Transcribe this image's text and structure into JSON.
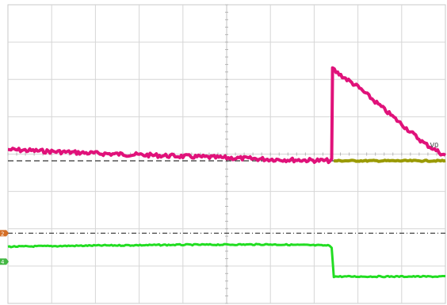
{
  "chart_data": {
    "type": "line",
    "title": "",
    "xlabel": "",
    "ylabel": "",
    "grid": true,
    "grid_divisions": {
      "x": 10,
      "y": 8
    },
    "xlim": [
      0,
      10
    ],
    "ylim": [
      0,
      8
    ],
    "series": [
      {
        "color": "#e0127a",
        "x": [
          0,
          1,
          2,
          3,
          4,
          5,
          6,
          7.4,
          7.42,
          7.5,
          8,
          8.5,
          9,
          9.5,
          10
        ],
        "values": [
          4.12,
          4.07,
          4.02,
          3.98,
          3.94,
          3.9,
          3.86,
          3.82,
          6.3,
          6.2,
          5.8,
          5.3,
          4.8,
          4.3,
          3.95
        ]
      },
      {
        "color": "#9a9a00",
        "x": [
          7.45,
          10
        ],
        "values": [
          3.82,
          3.82
        ]
      },
      {
        "color": "#22dd22",
        "x": [
          0,
          2,
          4,
          6,
          7.35,
          7.4,
          7.45,
          10
        ],
        "values": [
          1.52,
          1.55,
          1.57,
          1.58,
          1.55,
          1.5,
          0.72,
          0.72
        ]
      }
    ],
    "reference_lines": [
      {
        "style": "dashed",
        "color": "#333333",
        "y": 3.82
      },
      {
        "style": "dash-dot",
        "color": "#444444",
        "y": 1.88
      }
    ],
    "channel_markers": [
      {
        "label": "2",
        "color": "#cc5500",
        "y": 1.88
      },
      {
        "label": "4",
        "color": "#22aa22",
        "y": 1.12
      }
    ],
    "annotations": [
      {
        "text": "V0",
        "x": 9.65,
        "y": 4.18
      }
    ]
  }
}
